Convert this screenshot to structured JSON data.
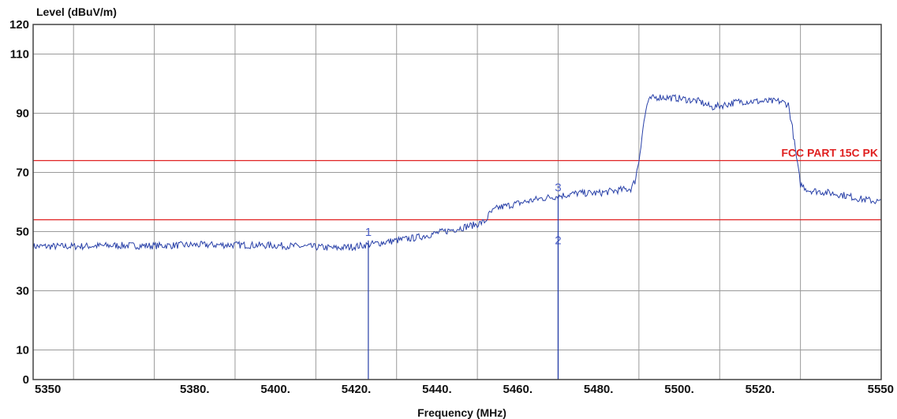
{
  "chart_data": {
    "type": "line",
    "title": "",
    "xlabel": "Frequency (MHz)",
    "ylabel": "Level (dBuV/m)",
    "xlim": [
      5340,
      5550
    ],
    "ylim": [
      0,
      120
    ],
    "x_ticks": [
      {
        "value": 5350,
        "label": "5350"
      },
      {
        "value": 5380,
        "label": "5380."
      },
      {
        "value": 5400,
        "label": "5400."
      },
      {
        "value": 5420,
        "label": "5420."
      },
      {
        "value": 5440,
        "label": "5440."
      },
      {
        "value": 5460,
        "label": "5460."
      },
      {
        "value": 5480,
        "label": "5480."
      },
      {
        "value": 5500,
        "label": "5500."
      },
      {
        "value": 5520,
        "label": "5520."
      },
      {
        "value": 5550,
        "label": "5550"
      }
    ],
    "x_gridlines": [
      5350,
      5370,
      5390,
      5410,
      5430,
      5450,
      5470,
      5490,
      5510,
      5530
    ],
    "y_ticks": [
      {
        "value": 0,
        "label": "0"
      },
      {
        "value": 10,
        "label": "10"
      },
      {
        "value": 30,
        "label": "30"
      },
      {
        "value": 50,
        "label": "50"
      },
      {
        "value": 70,
        "label": "70"
      },
      {
        "value": 90,
        "label": "90"
      },
      {
        "value": 110,
        "label": "110"
      },
      {
        "value": 120,
        "label": "120"
      }
    ],
    "y_gridlines": [
      10,
      30,
      50,
      70,
      90,
      110
    ],
    "grid": true,
    "series": [
      {
        "color": "#2840a8",
        "points": [
          [
            5340,
            45
          ],
          [
            5350,
            45
          ],
          [
            5360,
            45.3
          ],
          [
            5370,
            45.2
          ],
          [
            5380,
            45.5
          ],
          [
            5390,
            45.5
          ],
          [
            5400,
            45.3
          ],
          [
            5410,
            44.8
          ],
          [
            5415,
            44.4
          ],
          [
            5420,
            45
          ],
          [
            5425,
            46
          ],
          [
            5430,
            47
          ],
          [
            5435,
            48
          ],
          [
            5440,
            49.5
          ],
          [
            5445,
            51
          ],
          [
            5450,
            52.5
          ],
          [
            5452,
            53.5
          ],
          [
            5453,
            56
          ],
          [
            5455,
            58
          ],
          [
            5460,
            59.5
          ],
          [
            5465,
            61
          ],
          [
            5470,
            62
          ],
          [
            5475,
            63
          ],
          [
            5480,
            63
          ],
          [
            5485,
            64
          ],
          [
            5488,
            64.5
          ],
          [
            5489,
            67
          ],
          [
            5490,
            74
          ],
          [
            5491,
            85
          ],
          [
            5492,
            93
          ],
          [
            5493,
            95
          ],
          [
            5495,
            95.5
          ],
          [
            5500,
            95
          ],
          [
            5505,
            94
          ],
          [
            5508,
            92
          ],
          [
            5510,
            92.5
          ],
          [
            5515,
            94
          ],
          [
            5520,
            94
          ],
          [
            5525,
            94
          ],
          [
            5527,
            93
          ],
          [
            5528,
            85
          ],
          [
            5529,
            75
          ],
          [
            5530,
            66
          ],
          [
            5532,
            64
          ],
          [
            5535,
            63.5
          ],
          [
            5540,
            62.5
          ],
          [
            5545,
            61
          ],
          [
            5550,
            60
          ]
        ]
      }
    ],
    "limit_lines": [
      {
        "value": 74,
        "label": "FCC PART 15C  PK",
        "color": "#e02020"
      },
      {
        "value": 54,
        "label": "",
        "color": "#e02020"
      }
    ],
    "markers": [
      {
        "label": "1",
        "x": 5423,
        "y": 47
      },
      {
        "label": "2",
        "x": 5470,
        "y": 50
      },
      {
        "label": "3",
        "x": 5470,
        "y": 62
      }
    ]
  }
}
